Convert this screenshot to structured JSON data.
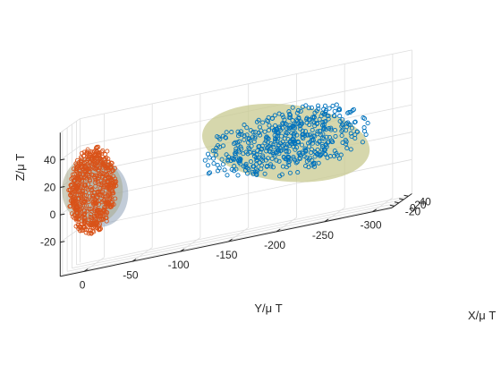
{
  "chart_data": {
    "type": "scatter3d",
    "title": "",
    "xlabel": "X/μ T",
    "ylabel": "Y/μ T",
    "zlabel": "Z/μ T",
    "xticks": [
      40,
      20,
      0,
      -20
    ],
    "yticks": [
      0,
      -50,
      -100,
      -150,
      -200,
      -250,
      -300
    ],
    "zticks": [
      40,
      20,
      0,
      -20
    ],
    "xlim": [
      -30,
      55
    ],
    "ylim": [
      -320,
      25
    ],
    "zlim": [
      -45,
      60
    ],
    "grid": true,
    "legend": null,
    "colors": {
      "series_orange": "#d95319",
      "series_blue": "#0072bd",
      "ellipsoid_fill": "#c8c990",
      "sphere_fill": "#a7a98c",
      "sphere_shadow": "#8fa3b8",
      "grid": "#dedede",
      "axis": "#262626"
    },
    "series": [
      {
        "marker": "o",
        "color": "#d95319",
        "point_count": 600,
        "center": {
          "x": 5,
          "y": 0,
          "z": 10
        },
        "spread": {
          "x": 28,
          "y": 22,
          "z": 30
        },
        "shape": "sphere"
      },
      {
        "marker": "o",
        "color": "#0072bd",
        "point_count": 520,
        "center": {
          "x": 10,
          "y": -200,
          "z": 15
        },
        "spread": {
          "x": 30,
          "y": 90,
          "z": 25
        },
        "shape": "ellipsoid"
      }
    ]
  }
}
